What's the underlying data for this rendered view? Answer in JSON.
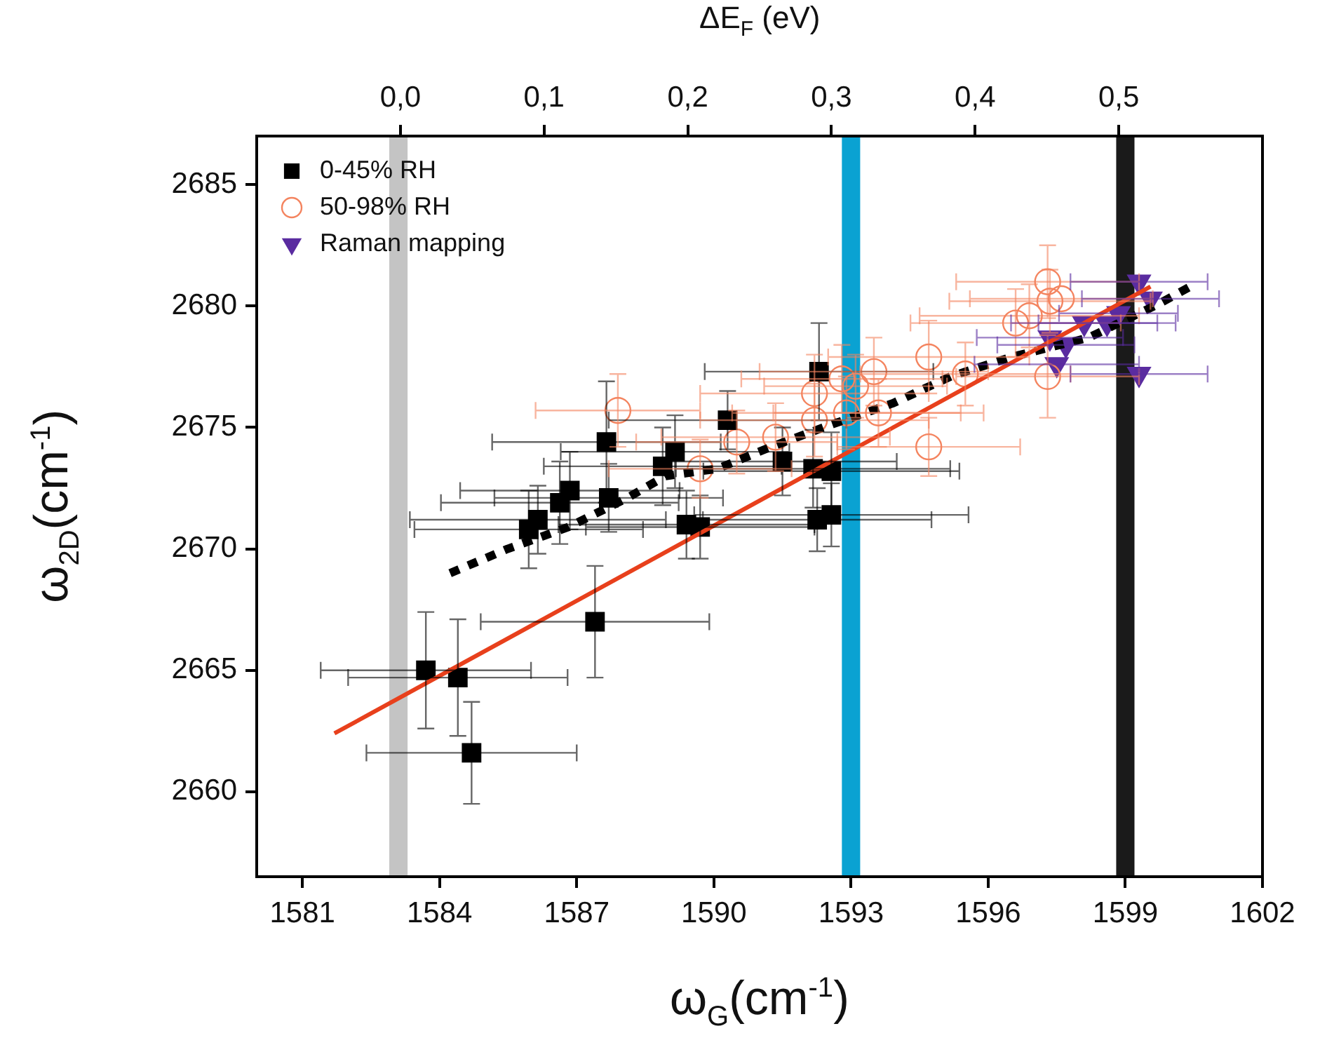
{
  "chart_data": {
    "type": "scatter",
    "xlabel": "ω$_{G}$(cm$^{-1}$)",
    "ylabel": "ω$_{2D}$(cm$^{-1}$)",
    "x2label": "ΔE$_{F}$ (eV)",
    "xlim": [
      1580,
      1602
    ],
    "xticks": [
      1581,
      1584,
      1587,
      1590,
      1593,
      1596,
      1599,
      1602
    ],
    "ylim": [
      2656.5,
      2687
    ],
    "yticks": [
      2660,
      2665,
      2670,
      2675,
      2680,
      2685
    ],
    "x2lim": [
      -0.1,
      0.6
    ],
    "x2ticks": [
      {
        "value": 0,
        "label": "0,0"
      },
      {
        "value": 0.1,
        "label": "0,1"
      },
      {
        "value": 0.2,
        "label": "0,2"
      },
      {
        "value": 0.3,
        "label": "0,3"
      },
      {
        "value": 0.4,
        "label": "0,4"
      },
      {
        "value": 0.5,
        "label": "0,5"
      }
    ],
    "grid": false,
    "legend": "top left",
    "bands": [
      {
        "axis": "x",
        "from": 1582.9,
        "to": 1583.3,
        "color": "#c4c4c4"
      },
      {
        "axis": "x",
        "from": 1592.8,
        "to": 1593.2,
        "color": "#0aa2d2"
      },
      {
        "axis": "x",
        "from": 1598.8,
        "to": 1599.2,
        "color": "#1a1a1a"
      }
    ],
    "series": [
      {
        "type": "line",
        "color": "#e8401c",
        "line_style": "solid",
        "marker": "none",
        "x": [
          1581.7,
          1599.55
        ],
        "values": [
          2662.4,
          2680.8
        ]
      },
      {
        "type": "line",
        "color": "#000000",
        "line_style": "dotted",
        "marker": "none",
        "x": [
          1584.23,
          1585.49,
          1586.82,
          1588.11,
          1588.94,
          1590.08,
          1591.25,
          1592.54,
          1593.92,
          1595.18,
          1596.51,
          1598.2,
          1599.74,
          1600.42
        ],
        "values": [
          2669.0,
          2670.0,
          2670.9,
          2672.1,
          2673.0,
          2673.3,
          2674.2,
          2675.1,
          2676.0,
          2677.1,
          2677.9,
          2678.7,
          2680.1,
          2680.8
        ]
      },
      {
        "type": "scatter",
        "name": "0-45% RH",
        "color": "#000000",
        "marker": "square",
        "x": [
          1583.7,
          1584.4,
          1584.7,
          1587.4,
          1585.95,
          1586.15,
          1586.63,
          1586.85,
          1587.7,
          1587.65,
          1588.88,
          1589.15,
          1589.4,
          1589.7,
          1590.3,
          1591.5,
          1592.3,
          1592.17,
          1592.57,
          1592.26,
          1592.57
        ],
        "values": [
          2665.0,
          2664.7,
          2661.6,
          2667.0,
          2670.8,
          2671.2,
          2671.9,
          2672.4,
          2672.1,
          2674.4,
          2673.4,
          2674.0,
          2671.0,
          2670.9,
          2675.3,
          2673.6,
          2677.3,
          2673.3,
          2673.2,
          2671.2,
          2671.4
        ],
        "errors": [
          2.4,
          2.4,
          2.1,
          2.3,
          1.6,
          1.4,
          1.7,
          1.6,
          1.4,
          2.5,
          1.6,
          1.5,
          1.4,
          1.3,
          1.2,
          1.4,
          2.0,
          1.6,
          1.6,
          1.3,
          1.3
        ],
        "xerrors": [
          2.3,
          2.4,
          2.3,
          2.5,
          2.5,
          2.8,
          2.6,
          2.4,
          2.5,
          2.5,
          2.6,
          2.5,
          2.8,
          2.5,
          2.6,
          2.5,
          2.5,
          3.0,
          2.8,
          2.5,
          3.0
        ]
      },
      {
        "type": "scatter",
        "name": "50-98% RH",
        "color": "#f4845f",
        "marker": "circle",
        "x": [
          1587.9,
          1590.5,
          1589.7,
          1591.35,
          1592.2,
          1592.2,
          1592.8,
          1593.1,
          1593.5,
          1592.9,
          1593.6,
          1594.7,
          1594.7,
          1595.5,
          1596.6,
          1596.9,
          1597.3,
          1597.35,
          1597.6,
          1597.3
        ],
        "values": [
          2675.7,
          2674.4,
          2673.3,
          2674.6,
          2676.4,
          2675.3,
          2677.0,
          2676.7,
          2677.3,
          2675.6,
          2675.6,
          2677.9,
          2674.2,
          2677.2,
          2679.3,
          2679.6,
          2681.0,
          2680.2,
          2680.3,
          2677.1
        ],
        "errors": [
          1.5,
          1.3,
          1.2,
          1.4,
          1.6,
          1.5,
          1.4,
          1.3,
          1.4,
          1.5,
          1.4,
          1.5,
          1.2,
          1.3,
          1.4,
          1.3,
          1.5,
          1.3,
          null,
          1.7
        ],
        "xerrors": [
          1.8,
          2.2,
          2.0,
          2.5,
          2.5,
          2.5,
          2.2,
          2.0,
          2.5,
          2.5,
          2.3,
          2.2,
          2.0,
          2.3,
          2.3,
          2.4,
          2.0,
          2.2,
          2.0,
          2.0
        ]
      },
      {
        "type": "scatter",
        "name": "Raman mapping",
        "color": "#5a2ca0",
        "marker": "triangle",
        "x": [
          1597.35,
          1597.7,
          1597.5,
          1598.1,
          1598.6,
          1598.85,
          1599.3,
          1599.55,
          1599.3
        ],
        "values": [
          2678.7,
          2678.4,
          2677.6,
          2679.3,
          2679.3,
          2679.7,
          2681.0,
          2680.3,
          2677.2
        ],
        "xerrors": [
          1.6,
          1.5,
          1.8,
          1.6,
          1.5,
          1.3,
          1.5,
          1.5,
          1.5
        ]
      }
    ]
  }
}
